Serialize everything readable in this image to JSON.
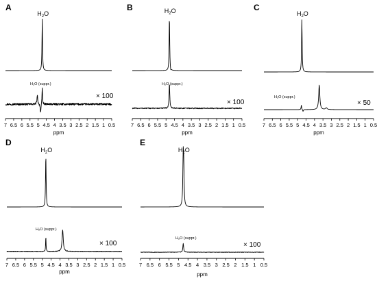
{
  "chart_data": [
    {
      "panel_letter": "A",
      "type": "line",
      "xlabel": "ppm",
      "xlim": [
        7,
        0.5
      ],
      "ticks": [
        "7",
        "6.5",
        "6",
        "5.5",
        "5",
        "4.5",
        "4",
        "3.5",
        "3",
        "2.5",
        "2",
        "1.5",
        "1",
        "0.5"
      ],
      "upper": {
        "label_main": "H",
        "label_sub": "2",
        "label_end": "O",
        "peaks": [
          {
            "x": 4.75,
            "y": 1.0,
            "w": 0.02
          }
        ]
      },
      "lower": {
        "label": "H₂O (suppr.)",
        "scale": "× 100",
        "noise": 0.17,
        "peaks": [
          {
            "x": 5.05,
            "y": 0.35,
            "w": 0.03
          },
          {
            "x": 4.75,
            "y": 0.7,
            "w": 0.02
          }
        ],
        "dips": [
          {
            "x": 4.85,
            "y": -0.35,
            "w": 0.03
          }
        ]
      }
    },
    {
      "panel_letter": "B",
      "type": "line",
      "xlabel": "ppm",
      "xlim": [
        7,
        0.5
      ],
      "ticks": [
        "7",
        "6.5",
        "6",
        "5.5",
        "5",
        "4.5",
        "4",
        "3.5",
        "3",
        "2.5",
        "2",
        "1.5",
        "1",
        "0.5"
      ],
      "upper": {
        "label_main": "H",
        "label_sub": "2",
        "label_end": "O",
        "peaks": [
          {
            "x": 4.8,
            "y": 1.0,
            "w": 0.02
          }
        ],
        "dips": [
          {
            "x": 4.72,
            "y": -0.04,
            "w": 0.02
          }
        ]
      },
      "lower": {
        "label": "H₂O (suppr.)",
        "scale": "× 100",
        "noise": 0.09,
        "peaks": [
          {
            "x": 4.8,
            "y": 1.0,
            "w": 0.025
          }
        ],
        "dips": []
      }
    },
    {
      "panel_letter": "C",
      "type": "line",
      "xlabel": "ppm",
      "xlim": [
        7,
        0.5
      ],
      "ticks": [
        "7",
        "6.5",
        "6",
        "5.5",
        "5",
        "4.5",
        "4",
        "3.5",
        "3",
        "2.5",
        "2",
        "1.5",
        "1",
        "0.5"
      ],
      "upper": {
        "label_main": "H",
        "label_sub": "2",
        "label_end": "O",
        "peaks": [
          {
            "x": 4.75,
            "y": 1.0,
            "w": 0.02
          }
        ]
      },
      "lower": {
        "label": "H₂O (suppr.)",
        "scale": "× 50",
        "noise": 0.0,
        "peaks": [
          {
            "x": 4.78,
            "y": 0.18,
            "w": 0.02
          },
          {
            "x": 3.72,
            "y": 1.0,
            "w": 0.04
          },
          {
            "x": 3.3,
            "y": 0.07,
            "w": 0.06
          }
        ],
        "dips": [
          {
            "x": 4.68,
            "y": -0.08,
            "w": 0.02
          }
        ]
      }
    },
    {
      "panel_letter": "D",
      "type": "line",
      "xlabel": "ppm",
      "xlim": [
        7,
        0.5
      ],
      "ticks": [
        "7",
        "6.5",
        "6",
        "5.5",
        "5",
        "4.5",
        "4",
        "3.5",
        "3",
        "2.5",
        "2",
        "1.5",
        "1",
        "0.5"
      ],
      "upper": {
        "label_main": "H",
        "label_sub": "2",
        "label_end": "O",
        "peaks": [
          {
            "x": 4.8,
            "y": 1.0,
            "w": 0.02
          }
        ]
      },
      "lower": {
        "label": "H₂O (suppr.)",
        "scale": "× 100",
        "noise": 0.06,
        "peaks": [
          {
            "x": 4.8,
            "y": 0.6,
            "w": 0.015
          },
          {
            "x": 3.85,
            "y": 0.85,
            "w": 0.04
          }
        ],
        "dips": []
      }
    },
    {
      "panel_letter": "E",
      "type": "line",
      "xlabel": "ppm",
      "xlim": [
        7,
        0.5
      ],
      "ticks": [
        "7",
        "6.5",
        "6",
        "5.5",
        "5",
        "4.5",
        "4",
        "3.5",
        "3",
        "2.5",
        "2",
        "1.5",
        "1",
        "0.5"
      ],
      "upper": {
        "label_main": "H",
        "label_sub": "2",
        "label_end": "O",
        "peaks": [
          {
            "x": 4.75,
            "y": 1.0,
            "w": 0.025
          },
          {
            "x": 4.72,
            "y": 0.55,
            "w": 0.02
          }
        ]
      },
      "lower": {
        "label": "H₂O (suppr.)",
        "scale": "× 100",
        "noise": 0.04,
        "peaks": [
          {
            "x": 4.75,
            "y": 0.35,
            "w": 0.025
          }
        ],
        "dips": []
      }
    }
  ]
}
